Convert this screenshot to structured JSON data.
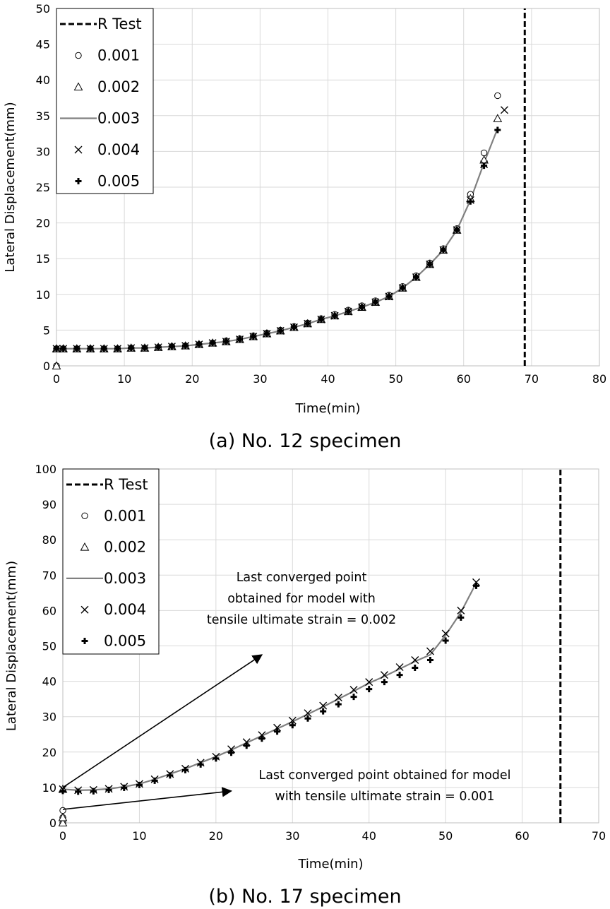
{
  "chart_data": [
    {
      "type": "line",
      "caption": "(a) No. 12 specimen",
      "xlabel": "Time(min)",
      "ylabel": "Lateral Displacement(mm)",
      "xlim": [
        0,
        80
      ],
      "ylim": [
        0,
        50
      ],
      "xticks": [
        0,
        10,
        20,
        30,
        40,
        50,
        60,
        70,
        80
      ],
      "yticks": [
        0,
        5,
        10,
        15,
        20,
        25,
        30,
        35,
        40,
        45,
        50
      ],
      "grid": true,
      "legend_position": "top-left",
      "r_test_x": 69,
      "series": [
        {
          "name": "R Test",
          "style": "dashed-line",
          "x": [
            69,
            69
          ],
          "y": [
            0,
            50
          ]
        },
        {
          "name": "0.001",
          "style": "circle",
          "x": [
            0,
            0,
            1,
            3,
            5,
            7,
            9,
            11,
            13,
            15,
            17,
            19,
            21,
            23,
            25,
            27,
            29,
            31,
            33,
            35,
            37,
            39,
            41,
            43,
            45,
            47,
            49,
            51,
            53,
            55,
            57,
            59,
            61,
            63,
            65
          ],
          "y": [
            0,
            2.4,
            2.4,
            2.4,
            2.4,
            2.4,
            2.4,
            2.5,
            2.5,
            2.6,
            2.7,
            2.8,
            3.0,
            3.2,
            3.5,
            3.8,
            4.2,
            4.6,
            5.0,
            5.5,
            6.0,
            6.6,
            7.2,
            7.8,
            8.4,
            9.1,
            9.9,
            11.1,
            12.6,
            14.4,
            16.4,
            19.2,
            24.0,
            29.8,
            37.8
          ]
        },
        {
          "name": "0.002",
          "style": "triangle",
          "x": [
            0,
            0,
            1,
            3,
            5,
            7,
            9,
            11,
            13,
            15,
            17,
            19,
            21,
            23,
            25,
            27,
            29,
            31,
            33,
            35,
            37,
            39,
            41,
            43,
            45,
            47,
            49,
            51,
            53,
            55,
            57,
            59,
            61,
            63,
            65
          ],
          "y": [
            0,
            2.4,
            2.4,
            2.4,
            2.4,
            2.4,
            2.4,
            2.5,
            2.5,
            2.6,
            2.7,
            2.8,
            3.0,
            3.2,
            3.4,
            3.7,
            4.1,
            4.5,
            4.9,
            5.4,
            5.9,
            6.5,
            7.0,
            7.6,
            8.2,
            8.9,
            9.7,
            10.9,
            12.4,
            14.2,
            16.2,
            19.0,
            23.4,
            28.8,
            34.6
          ]
        },
        {
          "name": "0.003",
          "style": "solid-line",
          "x": [
            0,
            1,
            3,
            5,
            7,
            9,
            11,
            13,
            15,
            17,
            19,
            21,
            23,
            25,
            27,
            29,
            31,
            33,
            35,
            37,
            39,
            41,
            43,
            45,
            47,
            49,
            51,
            53,
            55,
            57,
            59,
            61,
            63,
            65
          ],
          "y": [
            2.4,
            2.4,
            2.4,
            2.4,
            2.4,
            2.4,
            2.5,
            2.5,
            2.6,
            2.7,
            2.8,
            3.0,
            3.2,
            3.4,
            3.7,
            4.1,
            4.5,
            4.9,
            5.4,
            5.9,
            6.5,
            7.0,
            7.6,
            8.2,
            8.9,
            9.7,
            10.9,
            12.4,
            14.2,
            16.2,
            19.0,
            23.2,
            28.4,
            33.2
          ]
        },
        {
          "name": "0.004",
          "style": "cross",
          "x": [
            0,
            1,
            3,
            5,
            7,
            9,
            11,
            13,
            15,
            17,
            19,
            21,
            23,
            25,
            27,
            29,
            31,
            33,
            35,
            37,
            39,
            41,
            43,
            45,
            47,
            49,
            51,
            53,
            55,
            57,
            59,
            61,
            63,
            66
          ],
          "y": [
            2.4,
            2.4,
            2.4,
            2.4,
            2.4,
            2.4,
            2.5,
            2.5,
            2.6,
            2.7,
            2.8,
            3.0,
            3.2,
            3.4,
            3.7,
            4.1,
            4.5,
            4.9,
            5.4,
            5.9,
            6.5,
            7.0,
            7.6,
            8.2,
            8.9,
            9.7,
            10.9,
            12.4,
            14.2,
            16.2,
            19.0,
            23.2,
            28.2,
            35.8
          ]
        },
        {
          "name": "0.005",
          "style": "plus",
          "x": [
            0,
            1,
            3,
            5,
            7,
            9,
            11,
            13,
            15,
            17,
            19,
            21,
            23,
            25,
            27,
            29,
            31,
            33,
            35,
            37,
            39,
            41,
            43,
            45,
            47,
            49,
            51,
            53,
            55,
            57,
            59,
            61,
            63,
            65
          ],
          "y": [
            2.4,
            2.4,
            2.4,
            2.4,
            2.4,
            2.4,
            2.5,
            2.5,
            2.6,
            2.7,
            2.8,
            3.0,
            3.2,
            3.4,
            3.7,
            4.1,
            4.5,
            4.9,
            5.4,
            5.9,
            6.5,
            7.0,
            7.6,
            8.2,
            8.9,
            9.7,
            10.9,
            12.4,
            14.2,
            16.2,
            19.0,
            23.0,
            28.0,
            33.0
          ]
        }
      ],
      "annotations": []
    },
    {
      "type": "line",
      "caption": "(b) No. 17 specimen",
      "xlabel": "Time(min)",
      "ylabel": "Lateral Displacement(mm)",
      "xlim": [
        0,
        70
      ],
      "ylim": [
        0,
        100
      ],
      "xticks": [
        0,
        10,
        20,
        30,
        40,
        50,
        60,
        70
      ],
      "yticks": [
        0,
        10,
        20,
        30,
        40,
        50,
        60,
        70,
        80,
        90,
        100
      ],
      "grid": true,
      "legend_position": "top-left",
      "r_test_x": 65,
      "series": [
        {
          "name": "R Test",
          "style": "dashed-line",
          "x": [
            65,
            65
          ],
          "y": [
            0,
            100
          ]
        },
        {
          "name": "0.001",
          "style": "circle",
          "x": [
            0,
            0,
            0
          ],
          "y": [
            0,
            1.5,
            3.5
          ]
        },
        {
          "name": "0.002",
          "style": "triangle",
          "x": [
            0,
            0,
            0
          ],
          "y": [
            0,
            1.5,
            9.5
          ]
        },
        {
          "name": "0.003",
          "style": "solid-line",
          "x": [
            0,
            2,
            4,
            6,
            8,
            10,
            12,
            14,
            16,
            18,
            20,
            22,
            24,
            26,
            28,
            30,
            32,
            34,
            36,
            38,
            40,
            42,
            44,
            46,
            48,
            50,
            52,
            54
          ],
          "y": [
            9.5,
            9.2,
            9.3,
            9.6,
            10.2,
            11.0,
            12.3,
            13.8,
            15.3,
            17.0,
            18.7,
            20.6,
            22.6,
            24.6,
            26.6,
            28.6,
            30.7,
            32.8,
            35.0,
            37.2,
            39.5,
            41.4,
            43.5,
            45.6,
            47.5,
            53.0,
            59.5,
            67.8
          ]
        },
        {
          "name": "0.004",
          "style": "cross",
          "x": [
            0,
            2,
            4,
            6,
            8,
            10,
            12,
            14,
            16,
            18,
            20,
            22,
            24,
            26,
            28,
            30,
            32,
            34,
            36,
            38,
            40,
            42,
            44,
            46,
            48,
            50,
            52,
            54
          ],
          "y": [
            9.5,
            9.2,
            9.3,
            9.6,
            10.2,
            11.0,
            12.3,
            13.8,
            15.3,
            17.0,
            18.7,
            20.8,
            22.8,
            24.8,
            26.9,
            28.9,
            31.0,
            33.1,
            35.4,
            37.6,
            39.8,
            41.8,
            44.0,
            46.0,
            48.5,
            53.5,
            60.0,
            68.0
          ]
        },
        {
          "name": "0.005",
          "style": "plus",
          "x": [
            0,
            2,
            4,
            6,
            8,
            10,
            12,
            14,
            16,
            18,
            20,
            22,
            24,
            26,
            28,
            30,
            32,
            34,
            36,
            38,
            40,
            42,
            44,
            46,
            48,
            50,
            52,
            54
          ],
          "y": [
            9.0,
            8.8,
            8.9,
            9.3,
            9.9,
            10.7,
            11.9,
            13.4,
            14.9,
            16.5,
            18.2,
            19.8,
            21.8,
            23.8,
            25.8,
            27.6,
            29.5,
            31.5,
            33.5,
            35.6,
            37.8,
            39.8,
            41.8,
            43.8,
            46.0,
            51.5,
            58.0,
            67.0
          ]
        }
      ],
      "annotations": [
        {
          "lines": [
            "Last converged point",
            "obtained for model with",
            "tensile ultimate strain = 0.002"
          ],
          "arrow_from": [
            0,
            10
          ],
          "arrow_to": [
            26,
            47.5
          ]
        },
        {
          "lines": [
            "Last converged point obtained for model",
            "with tensile ultimate strain = 0.001"
          ],
          "arrow_from": [
            0,
            3.8
          ],
          "arrow_to": [
            22,
            9
          ]
        }
      ]
    }
  ]
}
